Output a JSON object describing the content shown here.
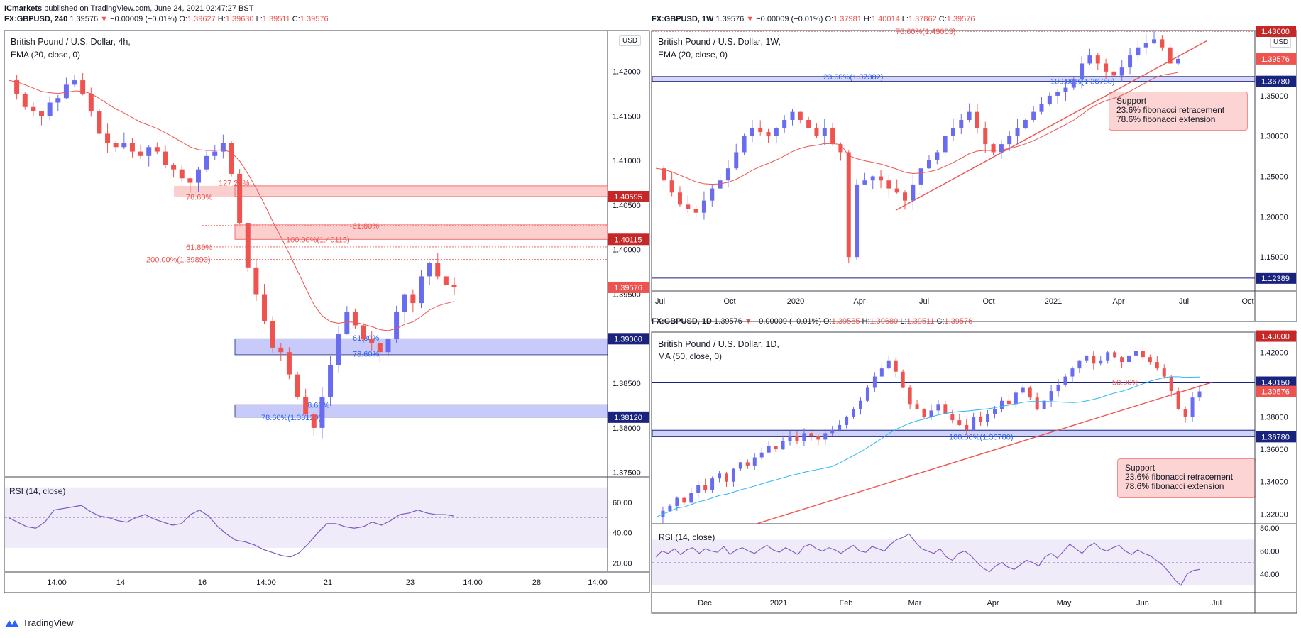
{
  "publisher": {
    "name": "ICmarkets",
    "text": "published on TradingView.com, June 24, 2021 02:47:27 BST"
  },
  "brand": {
    "footer": "TradingView",
    "accent": "#2962ff",
    "up": "#6a6cf0",
    "down": "#ef5350"
  },
  "chart_data": [
    {
      "id": "left",
      "type": "candlestick",
      "symbol_line": {
        "symbol": "FX:GBPUSD, 240",
        "last": "1.39576",
        "change": "−0.00009 (−0.01%)",
        "o": "1.39627",
        "h": "1.39630",
        "l": "1.39511",
        "c": "1.39576"
      },
      "title": "British Pound / U.S. Dollar, 4h,",
      "indicator": "EMA (20, close, 0)",
      "currency": "USD",
      "ylim": [
        1.3745,
        1.4245
      ],
      "yticks": [
        "1.42000",
        "1.41500",
        "1.41000",
        "1.40500",
        "1.40000",
        "1.39500",
        "1.38500",
        "1.38000",
        "1.37500"
      ],
      "xticks": [
        "14:00",
        "14",
        "16",
        "14:00",
        "21",
        "23",
        "14:00",
        "28",
        "14:00"
      ],
      "price_tags": [
        {
          "v": 1.40595,
          "label": "1.40595",
          "color": "#c62828"
        },
        {
          "v": 1.40115,
          "label": "1.40115",
          "color": "#c62828"
        },
        {
          "v": 1.39576,
          "label": "1.39576",
          "color": "#ef5350"
        },
        {
          "v": 1.39,
          "label": "1.39000",
          "color": "#1a237e"
        },
        {
          "v": 1.3812,
          "label": "1.38120",
          "color": "#1a237e"
        }
      ],
      "zones": [
        {
          "from": 1.40595,
          "to": 1.40715,
          "color": "red"
        },
        {
          "from": 1.40115,
          "to": 1.40285,
          "color": "red"
        },
        {
          "from": 1.3882,
          "to": 1.39,
          "color": "blue"
        },
        {
          "from": 1.3812,
          "to": 1.3826,
          "color": "blue"
        }
      ],
      "fib_labels": [
        {
          "text": "127.20%",
          "v": 1.4075
        },
        {
          "text": "78.60%",
          "v": 1.4059
        },
        {
          "text": "-61.80%",
          "v": 1.4027
        },
        {
          "text": "100.00%(1.40115)",
          "v": 1.40115
        },
        {
          "text": "61.80%",
          "v": 1.4003
        },
        {
          "text": "200.00%(1.39890)",
          "v": 1.3989
        },
        {
          "text": "61.80%",
          "v": 1.3901
        },
        {
          "text": "78.60%",
          "v": 1.3883
        },
        {
          "text": "78.60%",
          "v": 1.3826
        },
        {
          "text": "78.60%(1.38120)",
          "v": 1.3812
        }
      ],
      "rsi": {
        "title": "RSI (14, close)",
        "ylim": [
          15,
          75
        ],
        "yticks": [
          "60.00",
          "40.00",
          "20.00"
        ],
        "values": [
          50,
          47,
          44,
          43,
          47,
          55,
          56,
          57,
          58,
          54,
          51,
          50,
          48,
          47,
          50,
          52,
          49,
          47,
          45,
          46,
          52,
          55,
          51,
          44,
          39,
          35,
          34,
          32,
          29,
          27,
          25,
          24,
          27,
          33,
          40,
          46,
          46,
          44,
          43,
          44,
          47,
          45,
          48,
          52,
          53,
          55,
          53,
          52,
          52,
          51
        ]
      }
    },
    {
      "id": "weekly",
      "type": "candlestick",
      "symbol_line": {
        "symbol": "FX:GBPUSD, 1W",
        "last": "1.39576",
        "change": "−0.00009 (−0.01%)",
        "o": "1.37981",
        "h": "1.40014",
        "l": "1.37862",
        "c": "1.39576"
      },
      "title": "British Pound / U.S. Dollar, 1W,",
      "indicator": "EMA (20, close, 0)",
      "currency": "USD",
      "ylim": [
        1.1,
        1.43
      ],
      "yticks": [
        "1.35000",
        "1.30000",
        "1.25000",
        "1.20000",
        "1.15000"
      ],
      "xticks": [
        "Jul",
        "Oct",
        "2020",
        "Apr",
        "Jul",
        "Oct",
        "2021",
        "Apr",
        "Jul",
        "Oct"
      ],
      "price_tags": [
        {
          "v": 1.43,
          "label": "1.43000",
          "color": "#c62828"
        },
        {
          "v": 1.39576,
          "label": "1.39576",
          "color": "#ef5350"
        },
        {
          "v": 1.3678,
          "label": "1.36780",
          "color": "#1a237e"
        },
        {
          "v": 1.12389,
          "label": "1.12389",
          "color": "#1a237e"
        }
      ],
      "fib_labels": [
        {
          "text": "78.60%(1.43003)",
          "v": 1.43
        },
        {
          "text": "23.60%(1.37382)",
          "v": 1.37382
        },
        {
          "text": "100.00%(1.36780)",
          "v": 1.3678
        }
      ],
      "annotation": {
        "line1": "Support",
        "line2": "23.6% fibonacci retracement",
        "line3": "78.6% fibonacci extension"
      }
    },
    {
      "id": "daily",
      "type": "candlestick",
      "symbol_line": {
        "symbol": "FX:GBPUSD, 1D",
        "last": "1.39576",
        "change": "−0.00009 (−0.01%)",
        "o": "1.39585",
        "h": "1.39689",
        "l": "1.39511",
        "c": "1.39576"
      },
      "title": "British Pound / U.S. Dollar, 1D,",
      "indicator": "MA (50, close, 0)",
      "ylim": [
        1.314,
        1.432
      ],
      "yticks": [
        "1.42000",
        "1.38000",
        "1.36000",
        "1.34000",
        "1.32000"
      ],
      "xticks": [
        "Dec",
        "2021",
        "Feb",
        "Mar",
        "Apr",
        "May",
        "Jun",
        "Jul"
      ],
      "price_tags": [
        {
          "v": 1.43,
          "label": "1.43000",
          "color": "#c62828"
        },
        {
          "v": 1.4015,
          "label": "1.40150",
          "color": "#1a237e"
        },
        {
          "v": 1.39576,
          "label": "1.39576",
          "color": "#ef5350"
        },
        {
          "v": 1.3678,
          "label": "1.36780",
          "color": "#1a237e"
        }
      ],
      "fib_labels": [
        {
          "text": "50.00%",
          "v": 1.4015
        },
        {
          "text": "100.00%(1.36780)",
          "v": 1.3678
        }
      ],
      "annotation": {
        "line1": "Support",
        "line2": "23.6% fibonacci retracement",
        "line3": "78.6% fibonacci extension"
      },
      "rsi": {
        "title": "RSI (14, close)",
        "ylim": [
          25,
          82
        ],
        "yticks": [
          "80.00",
          "60.00",
          "40.00"
        ],
        "values": [
          55,
          60,
          58,
          62,
          57,
          61,
          63,
          58,
          62,
          60,
          59,
          64,
          57,
          61,
          63,
          60,
          58,
          62,
          65,
          61,
          59,
          63,
          60,
          57,
          64,
          66,
          62,
          60,
          63,
          61,
          58,
          62,
          65,
          60,
          59,
          64,
          62,
          60,
          66,
          70,
          72,
          75,
          68,
          62,
          60,
          58,
          62,
          55,
          52,
          58,
          60,
          56,
          50,
          45,
          42,
          47,
          50,
          46,
          44,
          48,
          52,
          50,
          47,
          55,
          58,
          54,
          60,
          66,
          62,
          58,
          64,
          67,
          62,
          60,
          63,
          65,
          60,
          57,
          61,
          58,
          56,
          52,
          48,
          42,
          35,
          30,
          40,
          43,
          44
        ]
      }
    }
  ]
}
